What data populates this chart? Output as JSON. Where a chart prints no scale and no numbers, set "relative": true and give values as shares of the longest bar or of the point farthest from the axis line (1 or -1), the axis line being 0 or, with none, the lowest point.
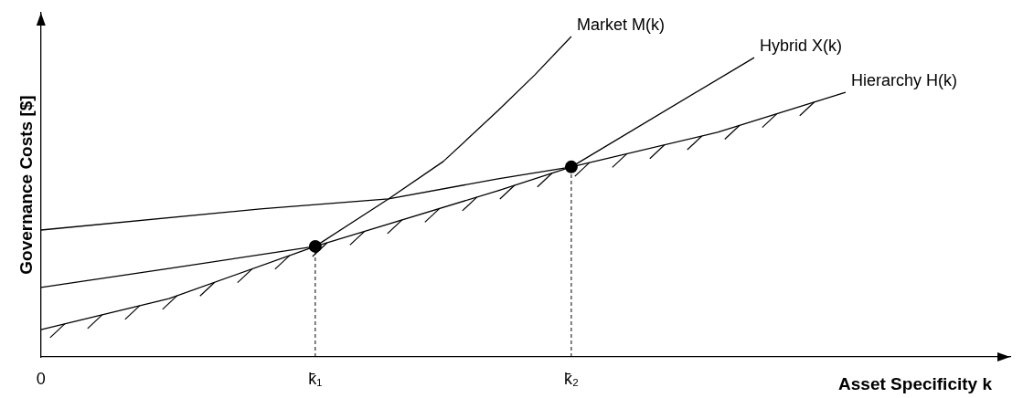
{
  "chart_data": {
    "type": "line",
    "relative": true,
    "xlabel": "Asset Specificity k",
    "ylabel": "Governance Costs [$]",
    "categories": [
      "0",
      null,
      null,
      null,
      null,
      null,
      null,
      null,
      null,
      null,
      null,
      null,
      null,
      null,
      null,
      "k̄₁",
      null,
      null,
      null,
      null,
      null,
      null,
      null,
      null,
      null,
      null,
      null,
      null,
      null,
      "k̄₂",
      null,
      null,
      null,
      null,
      null,
      null,
      null,
      null,
      null,
      null,
      null,
      null,
      null,
      null,
      null,
      null,
      null,
      null,
      null,
      null,
      null,
      null,
      null,
      null
    ],
    "series": [
      {
        "name": "Market M(k)",
        "color": "#000000",
        "values": [
          0.085,
          null,
          null,
          null,
          null,
          null,
          null,
          0.182,
          null,
          null,
          null,
          null,
          null,
          null,
          null,
          0.345,
          null,
          null,
          null,
          0.493,
          null,
          null,
          0.61,
          null,
          null,
          0.769,
          null,
          0.88,
          null,
          1,
          null,
          null,
          null,
          null,
          null,
          null,
          null,
          null,
          null,
          null,
          null,
          null,
          null,
          null,
          null,
          null,
          null,
          null,
          null,
          null,
          null,
          null,
          null,
          null
        ]
      },
      {
        "name": "Hybrid X(k)",
        "color": "#000000",
        "values": [
          0.217,
          null,
          null,
          null,
          null,
          null,
          null,
          0.276,
          null,
          null,
          null,
          null,
          null,
          null,
          null,
          0.345,
          null,
          null,
          null,
          null,
          null,
          null,
          null,
          null,
          null,
          0.519,
          null,
          null,
          null,
          0.593,
          null,
          null,
          null,
          null,
          null,
          null,
          null,
          null,
          null,
          0.934,
          null,
          null,
          null,
          null,
          null,
          null,
          null,
          null,
          null,
          null,
          null,
          null,
          null,
          null
        ]
      },
      {
        "name": "Hierarchy H(k)",
        "color": "#000000",
        "values": [
          0.396,
          null,
          null,
          null,
          null,
          null,
          null,
          null,
          null,
          null,
          null,
          null,
          0.462,
          null,
          null,
          null,
          null,
          null,
          null,
          0.493,
          null,
          null,
          null,
          null,
          null,
          0.556,
          null,
          null,
          null,
          0.593,
          null,
          null,
          null,
          null,
          null,
          null,
          null,
          0.701,
          null,
          null,
          null,
          null,
          null,
          null,
          0.826,
          null,
          null,
          null,
          null,
          null,
          null,
          null,
          null,
          null
        ]
      },
      {
        "type": "scatter",
        "color": "#000000",
        "marker": "circle",
        "values": [
          null,
          null,
          null,
          null,
          null,
          null,
          null,
          null,
          null,
          null,
          null,
          null,
          null,
          null,
          null,
          0.345,
          null,
          null,
          null,
          null,
          null,
          null,
          null,
          null,
          null,
          null,
          null,
          null,
          null,
          0.593,
          null,
          null,
          null,
          null,
          null,
          null,
          null,
          null,
          null,
          null,
          null,
          null,
          null,
          null,
          null,
          null,
          null,
          null,
          null,
          null,
          null,
          null,
          null,
          null
        ]
      }
    ],
    "grid": false,
    "legend": false,
    "marker": "none",
    "line_style": "solid"
  }
}
